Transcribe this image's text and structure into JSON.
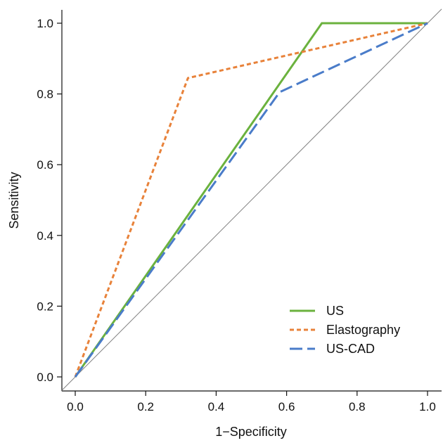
{
  "chart_data": {
    "type": "line",
    "xlabel": "1−Specificity",
    "ylabel": "Sensitivity",
    "xlim": [
      -0.04,
      1.04
    ],
    "ylim": [
      -0.04,
      1.04
    ],
    "x_ticks": [
      "0.0",
      "0.2",
      "0.4",
      "0.6",
      "0.8",
      "1.0"
    ],
    "y_ticks": [
      "0.0",
      "0.2",
      "0.4",
      "0.6",
      "0.8",
      "1.0"
    ],
    "grid": false,
    "legend_position": "bottom-right",
    "reference_line": {
      "x": [
        0,
        1
      ],
      "y": [
        0,
        1
      ],
      "color": "#808080"
    },
    "series": [
      {
        "name": "US",
        "color": "#6BB23E",
        "style": "solid",
        "x": [
          0.0,
          0.7,
          1.0
        ],
        "y": [
          0.0,
          1.0,
          1.0
        ]
      },
      {
        "name": "Elastography",
        "color": "#E8823A",
        "style": "dotted",
        "x": [
          0.0,
          0.32,
          1.0
        ],
        "y": [
          0.0,
          0.845,
          1.0
        ]
      },
      {
        "name": "US-CAD",
        "color": "#4A7CC9",
        "style": "dashed",
        "x": [
          0.0,
          0.58,
          1.0
        ],
        "y": [
          0.0,
          0.805,
          1.0
        ]
      }
    ]
  }
}
